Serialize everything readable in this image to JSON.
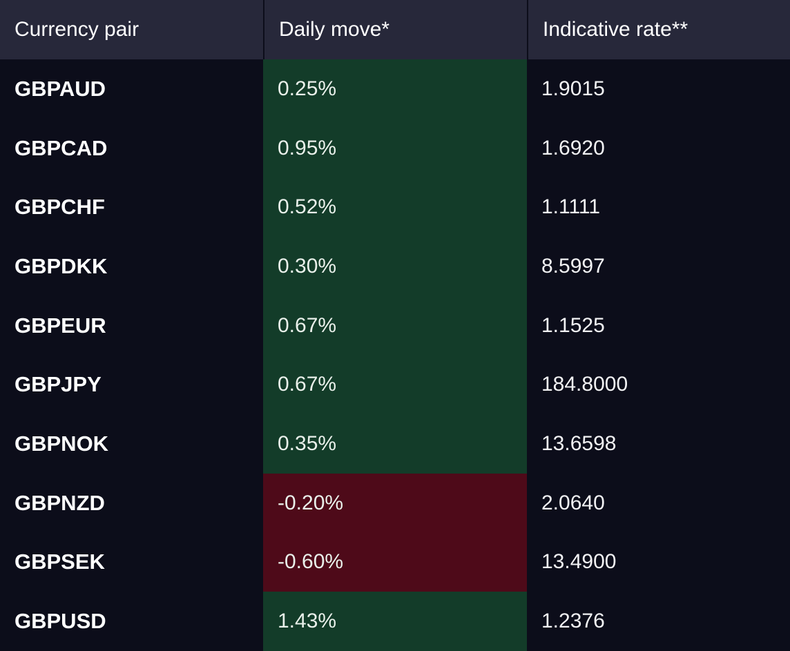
{
  "headers": {
    "pair": "Currency pair",
    "move": "Daily move*",
    "rate": "Indicative rate**"
  },
  "colors": {
    "background": "#0c0d1a",
    "header_background": "#27283a",
    "positive": "#133c29",
    "negative": "#4e0a19"
  },
  "rows": [
    {
      "pair": "GBPAUD",
      "move": "0.25%",
      "rate": "1.9015",
      "direction": "positive"
    },
    {
      "pair": "GBPCAD",
      "move": "0.95%",
      "rate": "1.6920",
      "direction": "positive"
    },
    {
      "pair": "GBPCHF",
      "move": "0.52%",
      "rate": "1.1111",
      "direction": "positive"
    },
    {
      "pair": "GBPDKK",
      "move": "0.30%",
      "rate": "8.5997",
      "direction": "positive"
    },
    {
      "pair": "GBPEUR",
      "move": "0.67%",
      "rate": "1.1525",
      "direction": "positive"
    },
    {
      "pair": "GBPJPY",
      "move": "0.67%",
      "rate": "184.8000",
      "direction": "positive"
    },
    {
      "pair": "GBPNOK",
      "move": "0.35%",
      "rate": "13.6598",
      "direction": "positive"
    },
    {
      "pair": "GBPNZD",
      "move": "-0.20%",
      "rate": "2.0640",
      "direction": "negative"
    },
    {
      "pair": "GBPSEK",
      "move": "-0.60%",
      "rate": "13.4900",
      "direction": "negative"
    },
    {
      "pair": "GBPUSD",
      "move": "1.43%",
      "rate": "1.2376",
      "direction": "positive"
    }
  ]
}
